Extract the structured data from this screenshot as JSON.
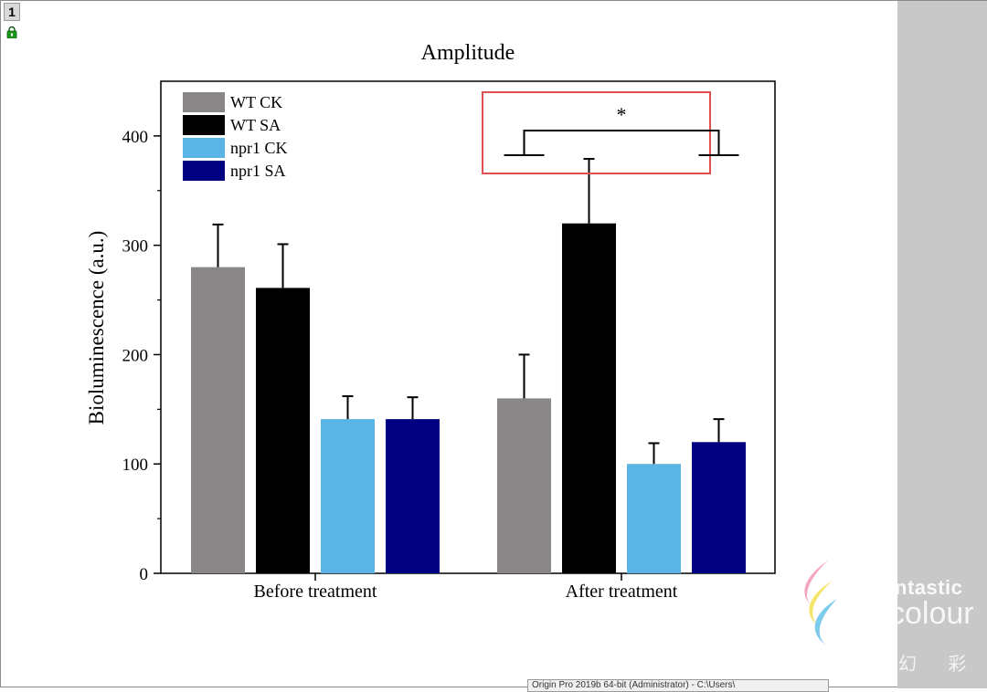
{
  "window": {
    "page_number": "1",
    "status_text": "Origin Pro 2019b 64-bit (Administrator) - C:\\Users\\"
  },
  "watermark": {
    "line1": "ntastic",
    "line2": "colour",
    "line3": "幻 彩"
  },
  "chart_data": {
    "type": "bar",
    "title": "Amplitude",
    "xlabel": "",
    "ylabel": "Bioluminescence (a.u.)",
    "ylim": [
      0,
      450
    ],
    "yticks": [
      0,
      100,
      200,
      300,
      400
    ],
    "categories": [
      "Before treatment",
      "After treatment"
    ],
    "series": [
      {
        "name": "WT CK",
        "color": "#8a8688",
        "values": [
          280,
          160
        ],
        "errors": [
          39,
          40
        ]
      },
      {
        "name": "WT SA",
        "color": "#000000",
        "values": [
          261,
          320
        ],
        "errors": [
          40,
          59
        ]
      },
      {
        "name": "npr1 CK",
        "color": "#5ab4e5",
        "values": [
          141,
          100
        ],
        "errors": [
          21,
          19
        ]
      },
      {
        "name": "npr1 SA",
        "color": "#000080",
        "values": [
          141,
          120
        ],
        "errors": [
          20,
          21
        ]
      }
    ],
    "legend_position": "top-left",
    "annotations": [
      {
        "text": "*",
        "category": "After treatment",
        "between": [
          "WT CK",
          "npr1 SA"
        ],
        "highlight_color": "#e05050"
      }
    ]
  }
}
